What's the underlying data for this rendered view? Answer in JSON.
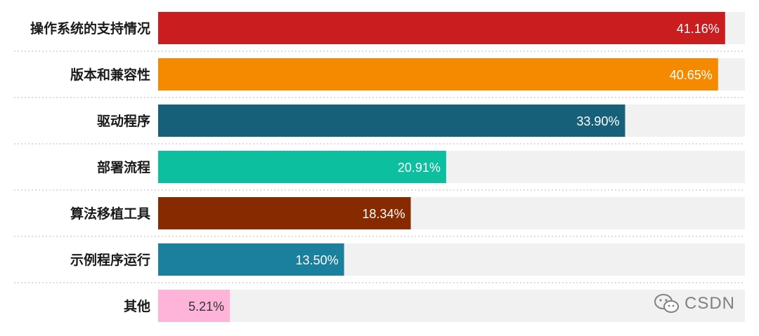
{
  "chart_data": {
    "type": "bar",
    "orientation": "horizontal",
    "categories": [
      "操作系统的支持情况",
      "版本和兼容性",
      "驱动程序",
      "部署流程",
      "算法移植工具",
      "示例程序运行",
      "其他"
    ],
    "values": [
      41.16,
      40.65,
      33.9,
      20.91,
      18.34,
      13.5,
      5.21
    ],
    "value_labels": [
      "41.16%",
      "40.65%",
      "33.90%",
      "20.91%",
      "18.34%",
      "13.50%",
      "5.21%"
    ],
    "colors": [
      "#c91d20",
      "#f58a00",
      "#17607a",
      "#0bbf9f",
      "#872a00",
      "#1b7f9e",
      "#fdb4d8"
    ],
    "value_label_colors": [
      "#ffffff",
      "#ffffff",
      "#ffffff",
      "#ffffff",
      "#ffffff",
      "#ffffff",
      "#333333"
    ],
    "track_color": "#f1f1f1",
    "grid": false,
    "row_separators": "dotted",
    "xlim": [
      0,
      42.6
    ],
    "title": "",
    "xlabel": "",
    "ylabel": ""
  },
  "watermark": {
    "icon": "wechat-icon",
    "text": "CSDN"
  }
}
